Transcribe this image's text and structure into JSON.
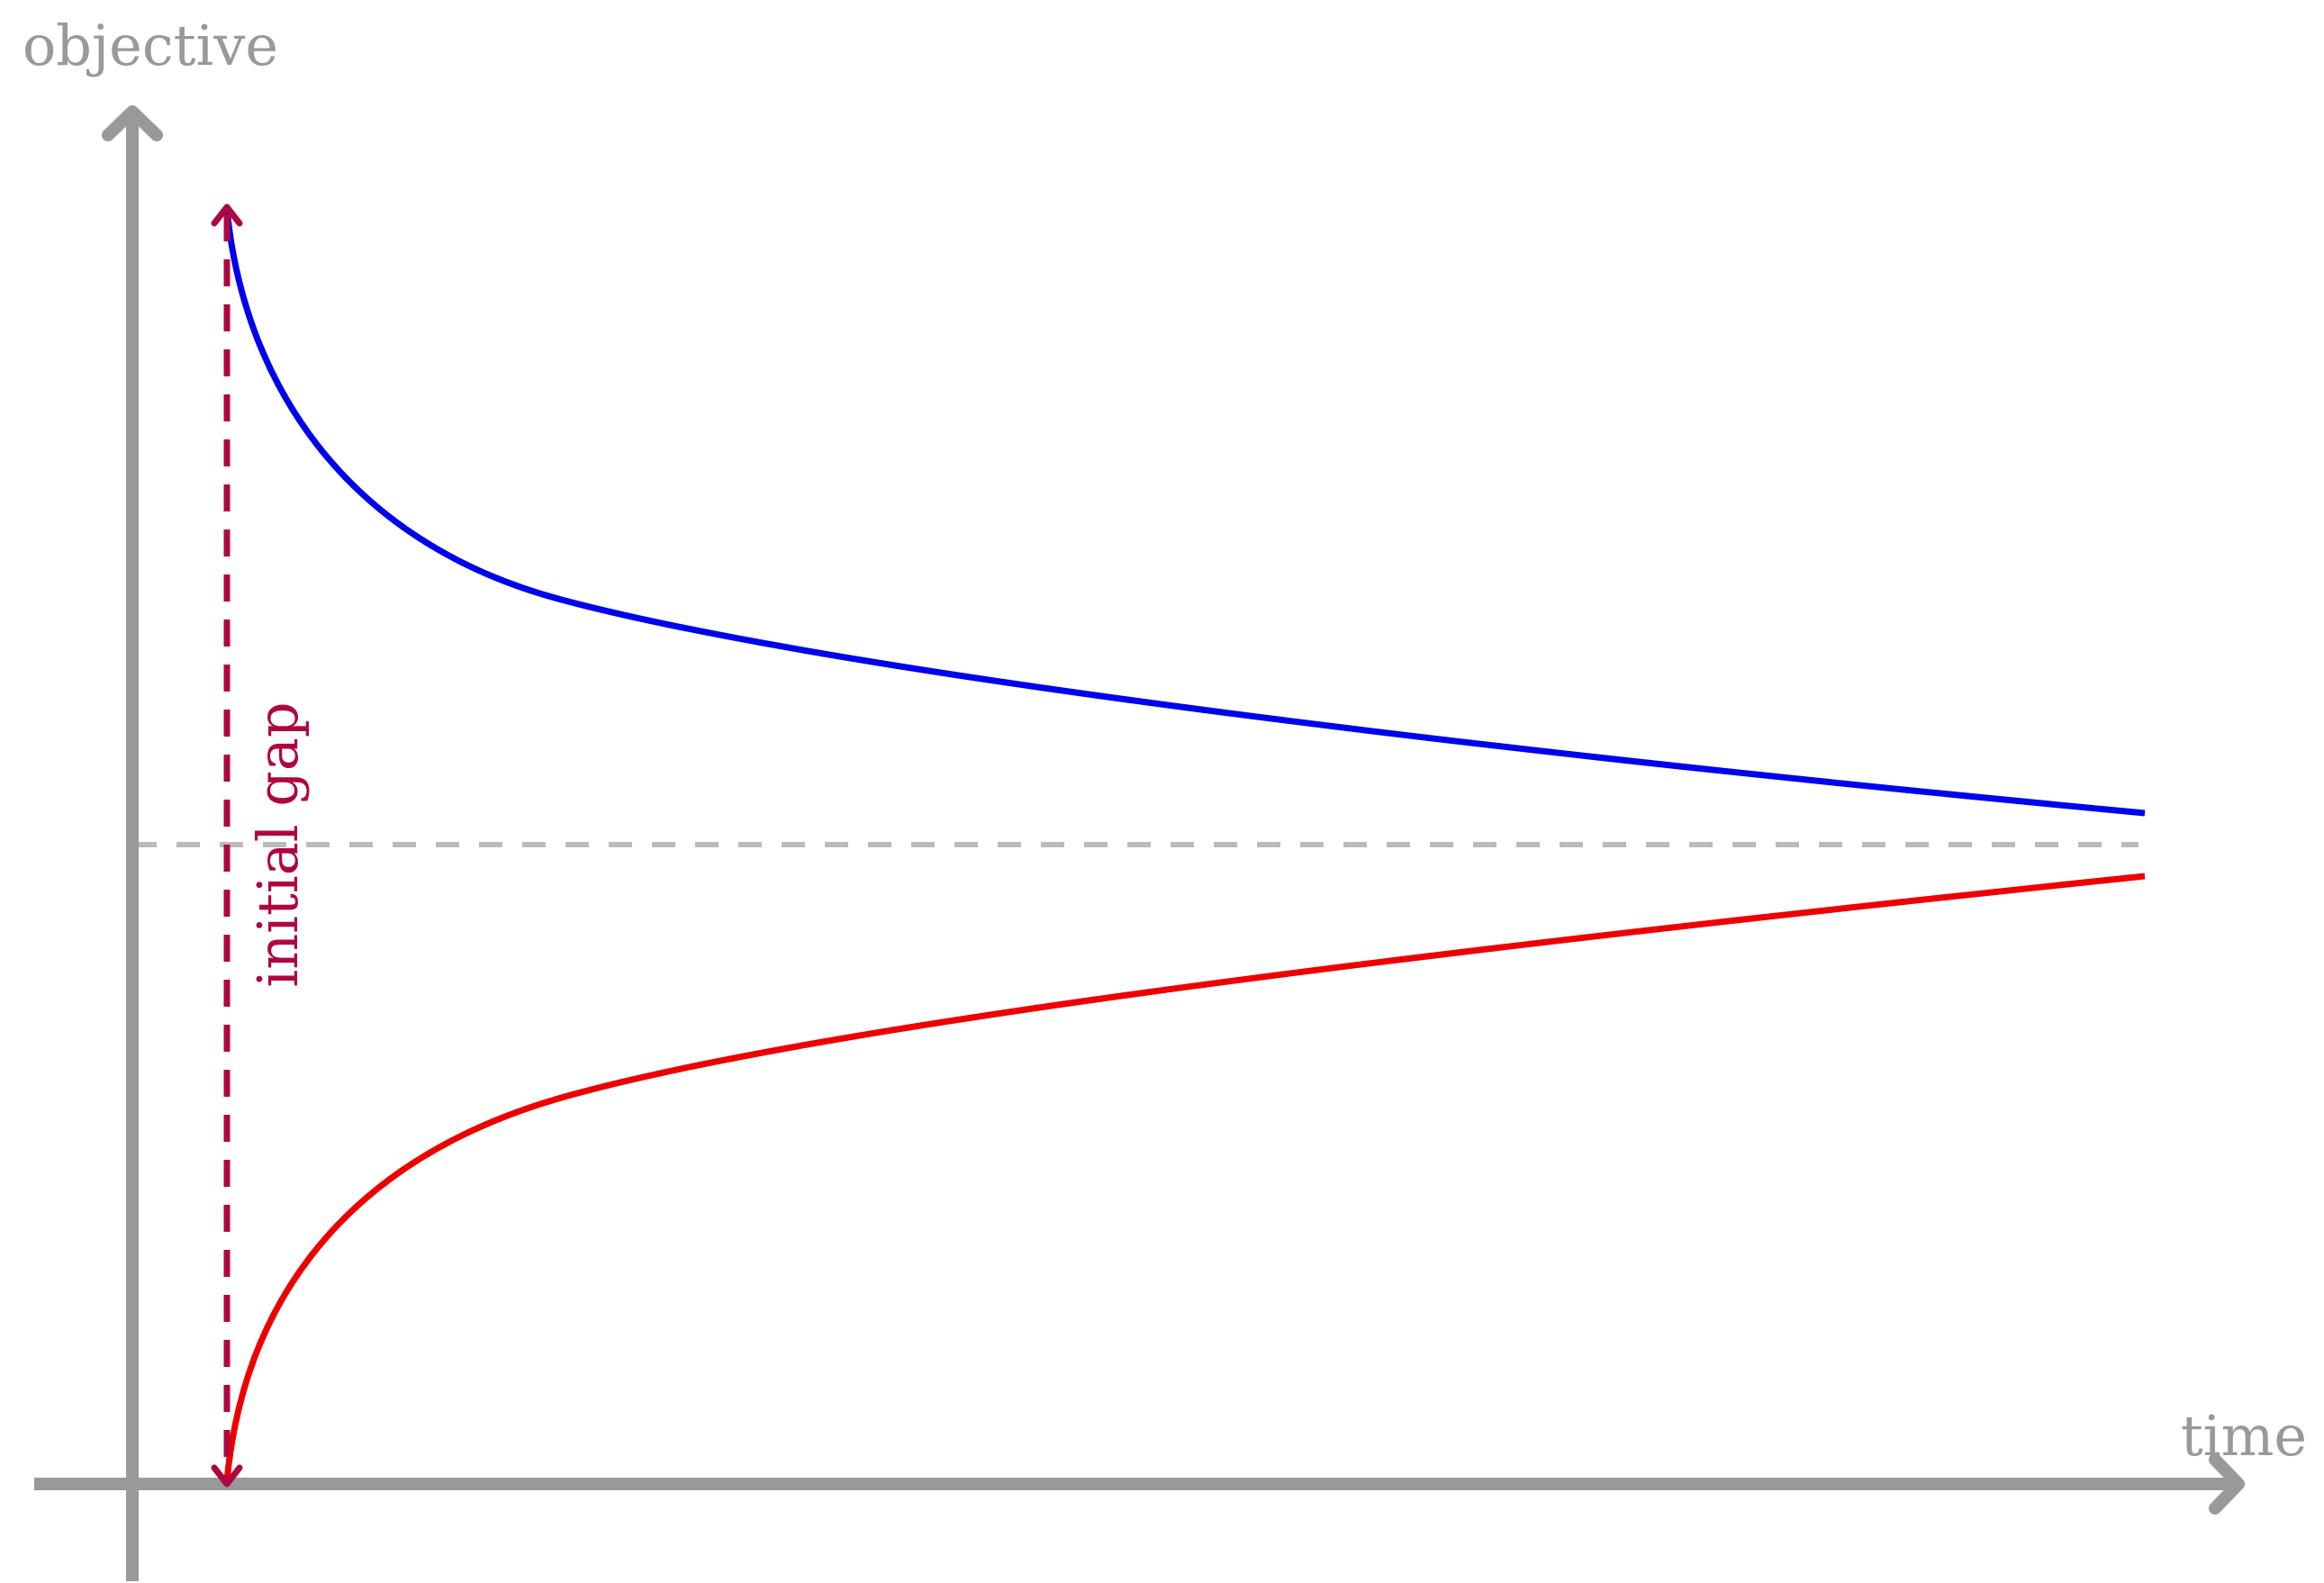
{
  "axes": {
    "x_label": "time",
    "y_label": "objective"
  },
  "annotation": {
    "gap_label": "initial gap"
  },
  "colors": {
    "axis": "#999999",
    "upper_curve": "#0000ee",
    "lower_curve": "#ee0000",
    "gap_arrow": "#b0063f",
    "optimum_line": "#bbbbbb"
  }
}
